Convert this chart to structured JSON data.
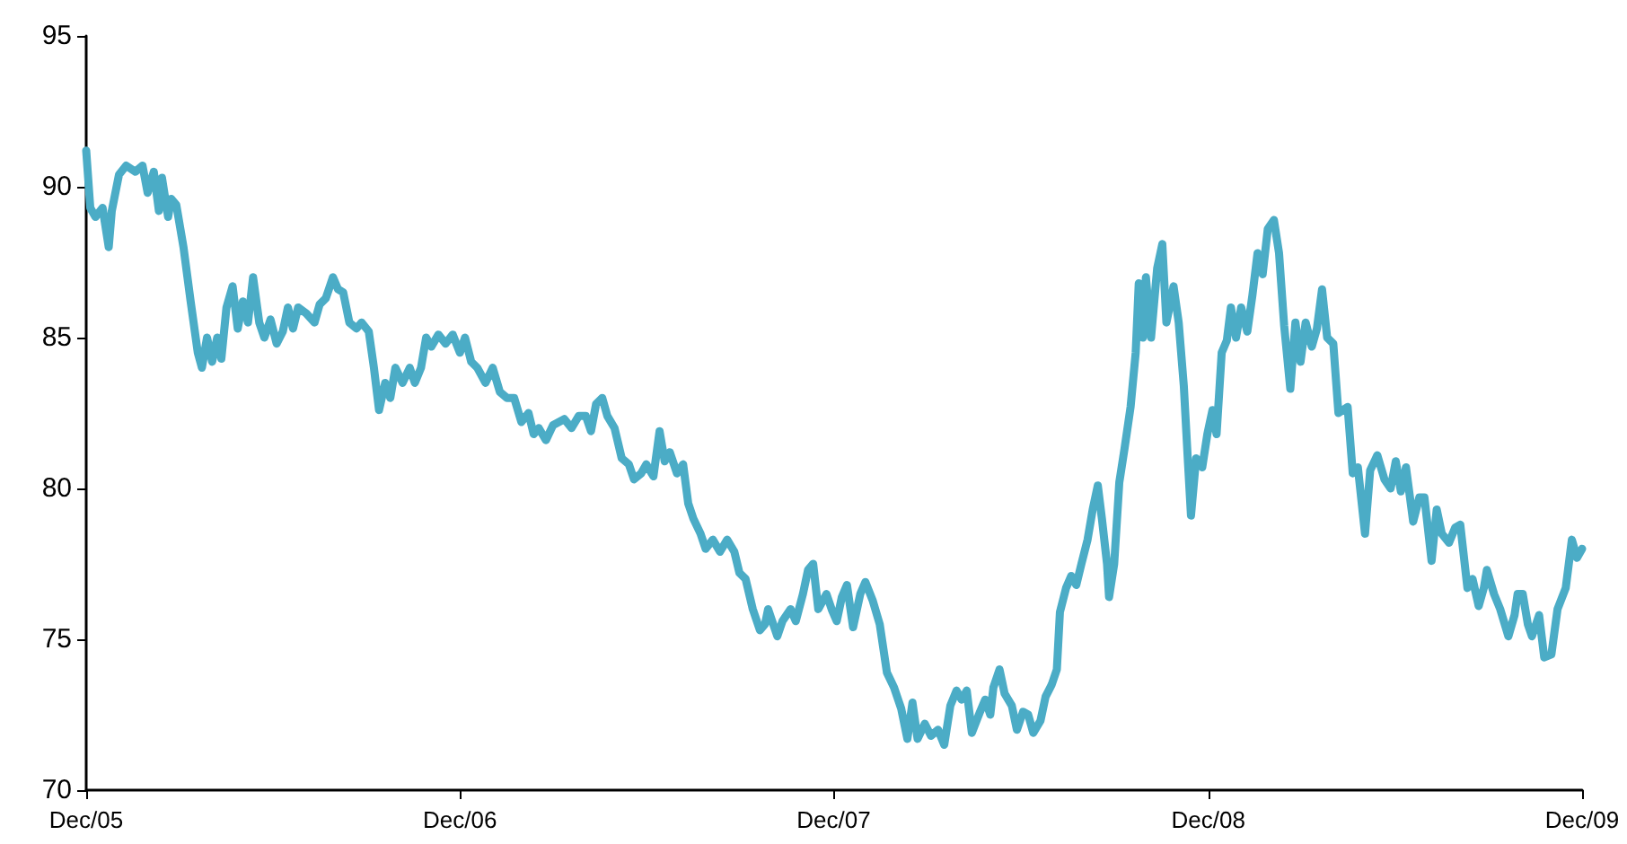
{
  "chart_data": {
    "type": "line",
    "x": [
      "2005-12-01",
      "2005-12-05",
      "2005-12-10",
      "2005-12-17",
      "2005-12-23",
      "2005-12-26",
      "2006-01-02",
      "2006-01-09",
      "2006-01-18",
      "2006-01-25",
      "2006-01-30",
      "2006-02-05",
      "2006-02-10",
      "2006-02-13",
      "2006-02-19",
      "2006-02-22",
      "2006-02-27",
      "2006-03-06",
      "2006-03-13",
      "2006-03-20",
      "2006-03-24",
      "2006-03-29",
      "2006-04-03",
      "2006-04-08",
      "2006-04-12",
      "2006-04-17",
      "2006-04-23",
      "2006-04-28",
      "2006-05-03",
      "2006-05-08",
      "2006-05-13",
      "2006-05-19",
      "2006-05-24",
      "2006-05-30",
      "2006-06-05",
      "2006-06-11",
      "2006-06-16",
      "2006-06-21",
      "2006-06-26",
      "2006-07-04",
      "2006-07-12",
      "2006-07-17",
      "2006-07-23",
      "2006-07-30",
      "2006-08-04",
      "2006-08-09",
      "2006-08-15",
      "2006-08-22",
      "2006-08-27",
      "2006-09-03",
      "2006-09-08",
      "2006-09-13",
      "2006-09-19",
      "2006-09-24",
      "2006-09-29",
      "2006-10-06",
      "2006-10-13",
      "2006-10-18",
      "2006-10-24",
      "2006-10-29",
      "2006-11-03",
      "2006-11-10",
      "2006-11-17",
      "2006-11-24",
      "2006-12-01",
      "2006-12-06",
      "2006-12-12",
      "2006-12-18",
      "2006-12-26",
      "2007-01-02",
      "2007-01-09",
      "2007-01-16",
      "2007-01-23",
      "2007-01-30",
      "2007-02-06",
      "2007-02-11",
      "2007-02-16",
      "2007-02-23",
      "2007-03-02",
      "2007-03-13",
      "2007-03-20",
      "2007-03-27",
      "2007-04-03",
      "2007-04-08",
      "2007-04-13",
      "2007-04-19",
      "2007-04-24",
      "2007-05-01",
      "2007-05-08",
      "2007-05-15",
      "2007-05-20",
      "2007-05-27",
      "2007-06-01",
      "2007-06-08",
      "2007-06-14",
      "2007-06-19",
      "2007-06-24",
      "2007-07-01",
      "2007-07-07",
      "2007-07-12",
      "2007-07-17",
      "2007-07-24",
      "2007-07-29",
      "2007-08-05",
      "2007-08-12",
      "2007-08-19",
      "2007-08-26",
      "2007-08-31",
      "2007-09-06",
      "2007-09-13",
      "2007-09-20",
      "2007-09-25",
      "2007-09-28",
      "2007-10-02",
      "2007-10-07",
      "2007-10-12",
      "2007-10-20",
      "2007-10-25",
      "2007-11-01",
      "2007-11-06",
      "2007-11-11",
      "2007-11-16",
      "2007-11-24",
      "2007-11-29",
      "2007-12-04",
      "2007-12-09",
      "2007-12-14",
      "2007-12-20",
      "2007-12-27",
      "2008-01-01",
      "2008-01-08",
      "2008-01-15",
      "2008-01-22",
      "2008-01-29",
      "2008-02-05",
      "2008-02-11",
      "2008-02-16",
      "2008-02-21",
      "2008-02-28",
      "2008-03-05",
      "2008-03-12",
      "2008-03-18",
      "2008-03-24",
      "2008-03-30",
      "2008-04-04",
      "2008-04-09",
      "2008-04-14",
      "2008-04-22",
      "2008-04-27",
      "2008-05-02",
      "2008-05-05",
      "2008-05-11",
      "2008-05-16",
      "2008-05-23",
      "2008-05-28",
      "2008-06-03",
      "2008-06-08",
      "2008-06-13",
      "2008-06-20",
      "2008-06-25",
      "2008-07-01",
      "2008-07-06",
      "2008-07-09",
      "2008-07-15",
      "2008-07-20",
      "2008-07-25",
      "2008-07-30",
      "2008-08-05",
      "2008-08-10",
      "2008-08-15",
      "2008-08-19",
      "2008-08-24",
      "2008-08-26",
      "2008-08-31",
      "2008-09-05",
      "2008-09-10",
      "2008-09-16",
      "2008-09-21",
      "2008-09-24",
      "2008-09-28",
      "2008-10-01",
      "2008-10-06",
      "2008-10-12",
      "2008-10-17",
      "2008-10-21",
      "2008-10-24",
      "2008-10-28",
      "2008-11-02",
      "2008-11-07",
      "2008-11-11",
      "2008-11-14",
      "2008-11-19",
      "2008-11-25",
      "2008-11-30",
      "2008-12-05",
      "2008-12-09",
      "2008-12-14",
      "2008-12-19",
      "2008-12-23",
      "2008-12-28",
      "2009-01-02",
      "2009-01-08",
      "2009-01-13",
      "2009-01-18",
      "2009-01-23",
      "2009-01-28",
      "2009-02-03",
      "2009-02-08",
      "2009-02-13",
      "2009-02-19",
      "2009-02-24",
      "2009-03-01",
      "2009-03-06",
      "2009-03-12",
      "2009-03-17",
      "2009-03-22",
      "2009-03-27",
      "2009-04-02",
      "2009-04-07",
      "2009-04-16",
      "2009-04-21",
      "2009-04-26",
      "2009-05-03",
      "2009-05-08",
      "2009-05-15",
      "2009-05-22",
      "2009-05-28",
      "2009-06-02",
      "2009-06-07",
      "2009-06-12",
      "2009-06-19",
      "2009-06-25",
      "2009-06-30",
      "2009-07-07",
      "2009-07-12",
      "2009-07-17",
      "2009-07-24",
      "2009-07-30",
      "2009-08-04",
      "2009-08-11",
      "2009-08-16",
      "2009-08-22",
      "2009-08-27",
      "2009-08-30",
      "2009-09-06",
      "2009-09-12",
      "2009-09-20",
      "2009-09-26",
      "2009-09-29",
      "2009-10-04",
      "2009-10-09",
      "2009-10-13",
      "2009-10-20",
      "2009-10-25",
      "2009-11-01",
      "2009-11-07",
      "2009-11-15",
      "2009-11-21",
      "2009-11-26",
      "2009-12-01"
    ],
    "values": [
      91.2,
      89.3,
      89.0,
      89.3,
      88.0,
      89.2,
      90.4,
      90.7,
      90.5,
      90.7,
      89.8,
      90.5,
      89.2,
      90.3,
      89.0,
      89.6,
      89.4,
      88.0,
      86.2,
      84.5,
      84.0,
      85.0,
      84.2,
      85.0,
      84.3,
      86.0,
      86.7,
      85.3,
      86.2,
      85.5,
      87.0,
      85.5,
      85.0,
      85.6,
      84.8,
      85.2,
      86.0,
      85.3,
      86.0,
      85.8,
      85.5,
      86.1,
      86.3,
      87.0,
      86.6,
      86.5,
      85.5,
      85.3,
      85.5,
      85.2,
      84.0,
      82.6,
      83.5,
      83.0,
      84.0,
      83.5,
      84.0,
      83.5,
      84.0,
      85.0,
      84.7,
      85.1,
      84.8,
      85.1,
      84.5,
      85.0,
      84.2,
      84.0,
      83.5,
      84.0,
      83.2,
      83.0,
      83.0,
      82.2,
      82.5,
      81.8,
      82.0,
      81.6,
      82.1,
      82.3,
      82.0,
      82.4,
      82.4,
      81.9,
      82.8,
      83.0,
      82.4,
      82.0,
      81.0,
      80.8,
      80.3,
      80.5,
      80.8,
      80.4,
      81.9,
      80.9,
      81.2,
      80.5,
      80.8,
      79.5,
      79.0,
      78.5,
      78.0,
      78.3,
      77.9,
      78.3,
      77.9,
      77.2,
      77.0,
      76.0,
      75.3,
      75.5,
      76.0,
      75.6,
      75.1,
      75.6,
      76.0,
      75.6,
      76.5,
      77.3,
      77.5,
      76.0,
      76.5,
      76.0,
      75.6,
      76.4,
      76.8,
      75.4,
      76.5,
      76.9,
      76.3,
      75.5,
      73.9,
      73.4,
      72.7,
      71.7,
      72.9,
      71.7,
      72.2,
      71.8,
      72.0,
      71.5,
      72.8,
      73.3,
      73.0,
      73.3,
      71.9,
      72.6,
      73.0,
      72.5,
      73.4,
      74.0,
      73.2,
      72.8,
      72.0,
      72.6,
      72.5,
      71.9,
      72.3,
      73.1,
      73.5,
      74.0,
      75.9,
      76.7,
      77.1,
      76.8,
      77.5,
      78.3,
      79.3,
      80.1,
      79.0,
      77.5,
      76.4,
      77.5,
      80.2,
      81.3,
      82.7,
      84.5,
      86.8,
      85.0,
      87.0,
      85.0,
      87.3,
      88.1,
      85.5,
      86.0,
      86.7,
      85.5,
      83.4,
      80.9,
      79.1,
      81.0,
      80.7,
      81.8,
      82.6,
      81.8,
      84.5,
      84.9,
      86.0,
      85.0,
      86.0,
      85.2,
      86.4,
      87.8,
      87.1,
      88.6,
      88.9,
      87.8,
      85.4,
      83.3,
      85.5,
      84.2,
      85.5,
      84.7,
      85.3,
      86.6,
      85.0,
      84.8,
      82.5,
      82.7,
      80.5,
      80.7,
      78.5,
      80.6,
      81.1,
      80.3,
      80.0,
      80.9,
      79.9,
      80.7,
      78.9,
      79.7,
      79.7,
      77.6,
      79.3,
      78.5,
      78.2,
      78.7,
      78.8,
      76.7,
      77.0,
      76.1,
      76.7,
      77.3,
      76.5,
      76.0,
      75.1,
      75.8,
      76.5,
      76.5,
      75.5,
      75.1,
      75.8,
      74.4,
      74.5,
      76.0,
      76.7,
      78.3,
      77.7,
      78.0
    ],
    "color": "#4bacc6",
    "xlim": [
      "2005-12-01",
      "2009-12-01"
    ],
    "xticks": [
      {
        "value": "2005-12-01",
        "label": "Dec/05"
      },
      {
        "value": "2006-12-01",
        "label": "Dec/06"
      },
      {
        "value": "2007-12-01",
        "label": "Dec/07"
      },
      {
        "value": "2008-12-01",
        "label": "Dec/08"
      },
      {
        "value": "2009-12-01",
        "label": "Dec/09"
      }
    ],
    "ylim": [
      70,
      95
    ],
    "yticks": [
      70,
      75,
      80,
      85,
      90,
      95
    ],
    "grid": false,
    "marker": "none",
    "line_style": "solid"
  }
}
